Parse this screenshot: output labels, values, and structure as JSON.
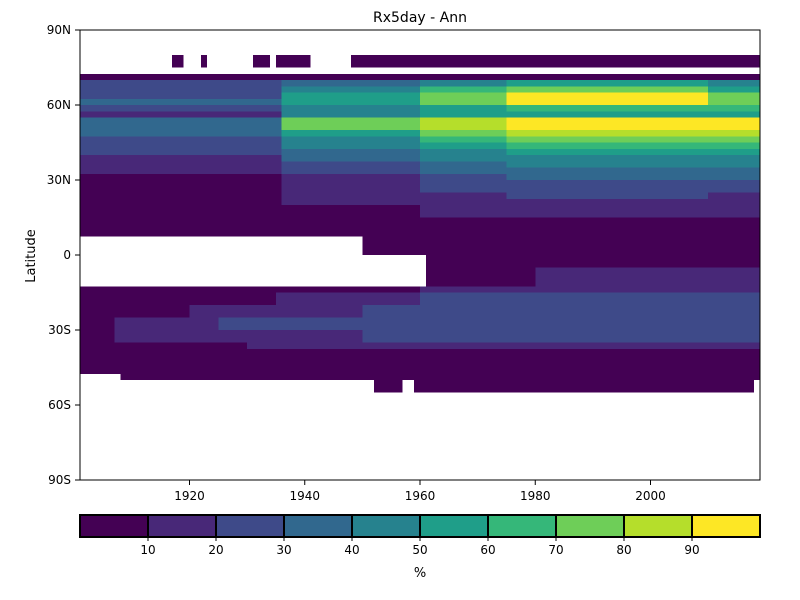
{
  "chart_data": {
    "type": "heatmap",
    "title": "Rx5day - Ann",
    "xlabel": "",
    "ylabel": "Latitude",
    "xlim": [
      1901,
      2019
    ],
    "ylim": [
      -90,
      90
    ],
    "x_ticks": [
      1920,
      1940,
      1960,
      1980,
      2000
    ],
    "x_tick_labels": [
      "1920",
      "1940",
      "1960",
      "1980",
      "2000"
    ],
    "y_ticks": [
      90,
      60,
      30,
      0,
      -30,
      -60,
      -90
    ],
    "y_tick_labels": [
      "90N",
      "60N",
      "30N",
      "0",
      "30S",
      "60S",
      "90S"
    ],
    "colorbar": {
      "label": "%",
      "bins": [
        0,
        10,
        20,
        30,
        40,
        50,
        60,
        70,
        80,
        90,
        100
      ],
      "tick_values": [
        10,
        20,
        30,
        40,
        50,
        60,
        70,
        80,
        90
      ],
      "tick_labels": [
        "10",
        "20",
        "30",
        "40",
        "50",
        "60",
        "70",
        "80",
        "90"
      ],
      "colors": [
        "#440154",
        "#482878",
        "#3e4a89",
        "#31688e",
        "#26828e",
        "#1f9e89",
        "#35b779",
        "#6ece58",
        "#b5de2b",
        "#fde725"
      ]
    },
    "lat_bands": [
      {
        "lat": [
          75,
          80
        ],
        "segments": [
          [
            1917,
            1919,
            5
          ],
          [
            1922,
            1923,
            5
          ],
          [
            1931,
            1934,
            5
          ],
          [
            1935,
            1941,
            5
          ],
          [
            1948,
            2019,
            5
          ]
        ]
      },
      {
        "lat": [
          70,
          72.5
        ],
        "segments": [
          [
            1901,
            2019,
            5
          ]
        ]
      },
      {
        "lat": [
          67.5,
          70
        ],
        "segments": [
          [
            1901,
            1936,
            25
          ],
          [
            1936,
            1960,
            35
          ],
          [
            1960,
            1975,
            45
          ],
          [
            1975,
            2010,
            55
          ],
          [
            2010,
            2019,
            45
          ]
        ]
      },
      {
        "lat": [
          65,
          67.5
        ],
        "segments": [
          [
            1901,
            1936,
            25
          ],
          [
            1936,
            1960,
            45
          ],
          [
            1960,
            1975,
            65
          ],
          [
            1975,
            2010,
            75
          ],
          [
            2010,
            2019,
            55
          ]
        ]
      },
      {
        "lat": [
          62.5,
          65
        ],
        "segments": [
          [
            1901,
            1936,
            25
          ],
          [
            1936,
            1960,
            55
          ],
          [
            1960,
            1975,
            75
          ],
          [
            1975,
            2010,
            95
          ],
          [
            2010,
            2019,
            75
          ]
        ]
      },
      {
        "lat": [
          60,
          62.5
        ],
        "segments": [
          [
            1901,
            1936,
            35
          ],
          [
            1936,
            1960,
            55
          ],
          [
            1960,
            1975,
            75
          ],
          [
            1975,
            2010,
            95
          ],
          [
            2010,
            2019,
            75
          ]
        ]
      },
      {
        "lat": [
          57.5,
          60
        ],
        "segments": [
          [
            1901,
            1936,
            25
          ],
          [
            1936,
            1960,
            45
          ],
          [
            1960,
            1975,
            55
          ],
          [
            1975,
            2010,
            65
          ],
          [
            2010,
            2019,
            65
          ]
        ]
      },
      {
        "lat": [
          55,
          57.5
        ],
        "segments": [
          [
            1901,
            1936,
            15
          ],
          [
            1936,
            1960,
            45
          ],
          [
            1960,
            1975,
            55
          ],
          [
            1975,
            2010,
            55
          ],
          [
            2010,
            2019,
            55
          ]
        ]
      },
      {
        "lat": [
          52.5,
          55
        ],
        "segments": [
          [
            1901,
            1936,
            35
          ],
          [
            1936,
            1960,
            75
          ],
          [
            1960,
            1975,
            85
          ],
          [
            1975,
            2010,
            95
          ],
          [
            2010,
            2019,
            95
          ]
        ]
      },
      {
        "lat": [
          50,
          52.5
        ],
        "segments": [
          [
            1901,
            1936,
            35
          ],
          [
            1936,
            1960,
            75
          ],
          [
            1960,
            1975,
            85
          ],
          [
            1975,
            2010,
            95
          ],
          [
            2010,
            2019,
            95
          ]
        ]
      },
      {
        "lat": [
          47.5,
          50
        ],
        "segments": [
          [
            1901,
            1936,
            35
          ],
          [
            1936,
            1960,
            55
          ],
          [
            1960,
            1975,
            75
          ],
          [
            1975,
            2010,
            85
          ],
          [
            2010,
            2019,
            85
          ]
        ]
      },
      {
        "lat": [
          45,
          47.5
        ],
        "segments": [
          [
            1901,
            1936,
            25
          ],
          [
            1936,
            1960,
            45
          ],
          [
            1960,
            1975,
            65
          ],
          [
            1975,
            2010,
            75
          ],
          [
            2010,
            2019,
            75
          ]
        ]
      },
      {
        "lat": [
          42.5,
          45
        ],
        "segments": [
          [
            1901,
            1936,
            25
          ],
          [
            1936,
            1960,
            45
          ],
          [
            1960,
            1975,
            55
          ],
          [
            1975,
            2010,
            65
          ],
          [
            2010,
            2019,
            65
          ]
        ]
      },
      {
        "lat": [
          40,
          42.5
        ],
        "segments": [
          [
            1901,
            1936,
            25
          ],
          [
            1936,
            1960,
            35
          ],
          [
            1960,
            1975,
            45
          ],
          [
            1975,
            2010,
            55
          ],
          [
            2010,
            2019,
            55
          ]
        ]
      },
      {
        "lat": [
          37.5,
          40
        ],
        "segments": [
          [
            1901,
            1936,
            15
          ],
          [
            1936,
            1960,
            35
          ],
          [
            1960,
            1975,
            45
          ],
          [
            1975,
            2010,
            45
          ],
          [
            2010,
            2019,
            45
          ]
        ]
      },
      {
        "lat": [
          35,
          37.5
        ],
        "segments": [
          [
            1901,
            1936,
            15
          ],
          [
            1936,
            1960,
            25
          ],
          [
            1960,
            1975,
            35
          ],
          [
            1975,
            2010,
            45
          ],
          [
            2010,
            2019,
            45
          ]
        ]
      },
      {
        "lat": [
          32.5,
          35
        ],
        "segments": [
          [
            1901,
            1936,
            15
          ],
          [
            1936,
            1960,
            25
          ],
          [
            1960,
            1975,
            35
          ],
          [
            1975,
            2010,
            35
          ],
          [
            2010,
            2019,
            35
          ]
        ]
      },
      {
        "lat": [
          30,
          32.5
        ],
        "segments": [
          [
            1901,
            1936,
            5
          ],
          [
            1936,
            1960,
            15
          ],
          [
            1960,
            1975,
            25
          ],
          [
            1975,
            2010,
            35
          ],
          [
            2010,
            2019,
            35
          ]
        ]
      },
      {
        "lat": [
          27.5,
          30
        ],
        "segments": [
          [
            1901,
            1936,
            5
          ],
          [
            1936,
            1960,
            15
          ],
          [
            1960,
            1975,
            25
          ],
          [
            1975,
            2010,
            25
          ],
          [
            2010,
            2019,
            25
          ]
        ]
      },
      {
        "lat": [
          25,
          27.5
        ],
        "segments": [
          [
            1901,
            1936,
            5
          ],
          [
            1936,
            1960,
            15
          ],
          [
            1960,
            1975,
            25
          ],
          [
            1975,
            2010,
            25
          ],
          [
            2010,
            2019,
            25
          ]
        ]
      },
      {
        "lat": [
          22.5,
          25
        ],
        "segments": [
          [
            1901,
            1936,
            5
          ],
          [
            1936,
            1960,
            15
          ],
          [
            1960,
            1975,
            15
          ],
          [
            1975,
            2010,
            25
          ],
          [
            2010,
            2019,
            15
          ]
        ]
      },
      {
        "lat": [
          20,
          22.5
        ],
        "segments": [
          [
            1901,
            1936,
            5
          ],
          [
            1936,
            1960,
            15
          ],
          [
            1960,
            1975,
            15
          ],
          [
            1975,
            2010,
            15
          ],
          [
            2010,
            2019,
            15
          ]
        ]
      },
      {
        "lat": [
          17.5,
          20
        ],
        "segments": [
          [
            1901,
            1936,
            5
          ],
          [
            1936,
            1960,
            5
          ],
          [
            1960,
            1975,
            15
          ],
          [
            1975,
            2010,
            15
          ],
          [
            2010,
            2019,
            15
          ]
        ]
      },
      {
        "lat": [
          15,
          17.5
        ],
        "segments": [
          [
            1901,
            1936,
            5
          ],
          [
            1936,
            1960,
            5
          ],
          [
            1960,
            1975,
            15
          ],
          [
            1975,
            2010,
            15
          ],
          [
            2010,
            2019,
            15
          ]
        ]
      },
      {
        "lat": [
          7.5,
          15
        ],
        "segments": [
          [
            1901,
            2019,
            5
          ]
        ]
      },
      {
        "lat": [
          0,
          7.5
        ],
        "segments": [
          [
            1950,
            2019,
            5
          ]
        ]
      },
      {
        "lat": [
          -5,
          0
        ],
        "segments": [
          [
            1961,
            2019,
            5
          ]
        ]
      },
      {
        "lat": [
          -12.5,
          -5
        ],
        "segments": [
          [
            1961,
            1980,
            5
          ],
          [
            1980,
            2019,
            15
          ]
        ]
      },
      {
        "lat": [
          -15,
          -12.5
        ],
        "segments": [
          [
            1901,
            1960,
            5
          ],
          [
            1960,
            2019,
            15
          ]
        ]
      },
      {
        "lat": [
          -20,
          -15
        ],
        "segments": [
          [
            1901,
            1935,
            5
          ],
          [
            1935,
            1960,
            15
          ],
          [
            1960,
            2019,
            25
          ]
        ]
      },
      {
        "lat": [
          -25,
          -20
        ],
        "segments": [
          [
            1901,
            1920,
            5
          ],
          [
            1920,
            1950,
            15
          ],
          [
            1950,
            2019,
            25
          ]
        ]
      },
      {
        "lat": [
          -30,
          -25
        ],
        "segments": [
          [
            1901,
            1907,
            5
          ],
          [
            1907,
            1925,
            15
          ],
          [
            1925,
            2019,
            25
          ]
        ]
      },
      {
        "lat": [
          -35,
          -30
        ],
        "segments": [
          [
            1901,
            1907,
            5
          ],
          [
            1907,
            1950,
            15
          ],
          [
            1950,
            2019,
            25
          ]
        ]
      },
      {
        "lat": [
          -37.5,
          -35
        ],
        "segments": [
          [
            1901,
            1930,
            5
          ],
          [
            1930,
            1960,
            15
          ],
          [
            1960,
            2019,
            15
          ]
        ]
      },
      {
        "lat": [
          -47.5,
          -37.5
        ],
        "segments": [
          [
            1901,
            2019,
            5
          ]
        ]
      },
      {
        "lat": [
          -50,
          -47.5
        ],
        "segments": [
          [
            1908,
            2019,
            5
          ]
        ]
      },
      {
        "lat": [
          -55,
          -50
        ],
        "segments": [
          [
            1952,
            1957,
            5
          ],
          [
            1959,
            2018,
            5
          ]
        ]
      }
    ]
  }
}
